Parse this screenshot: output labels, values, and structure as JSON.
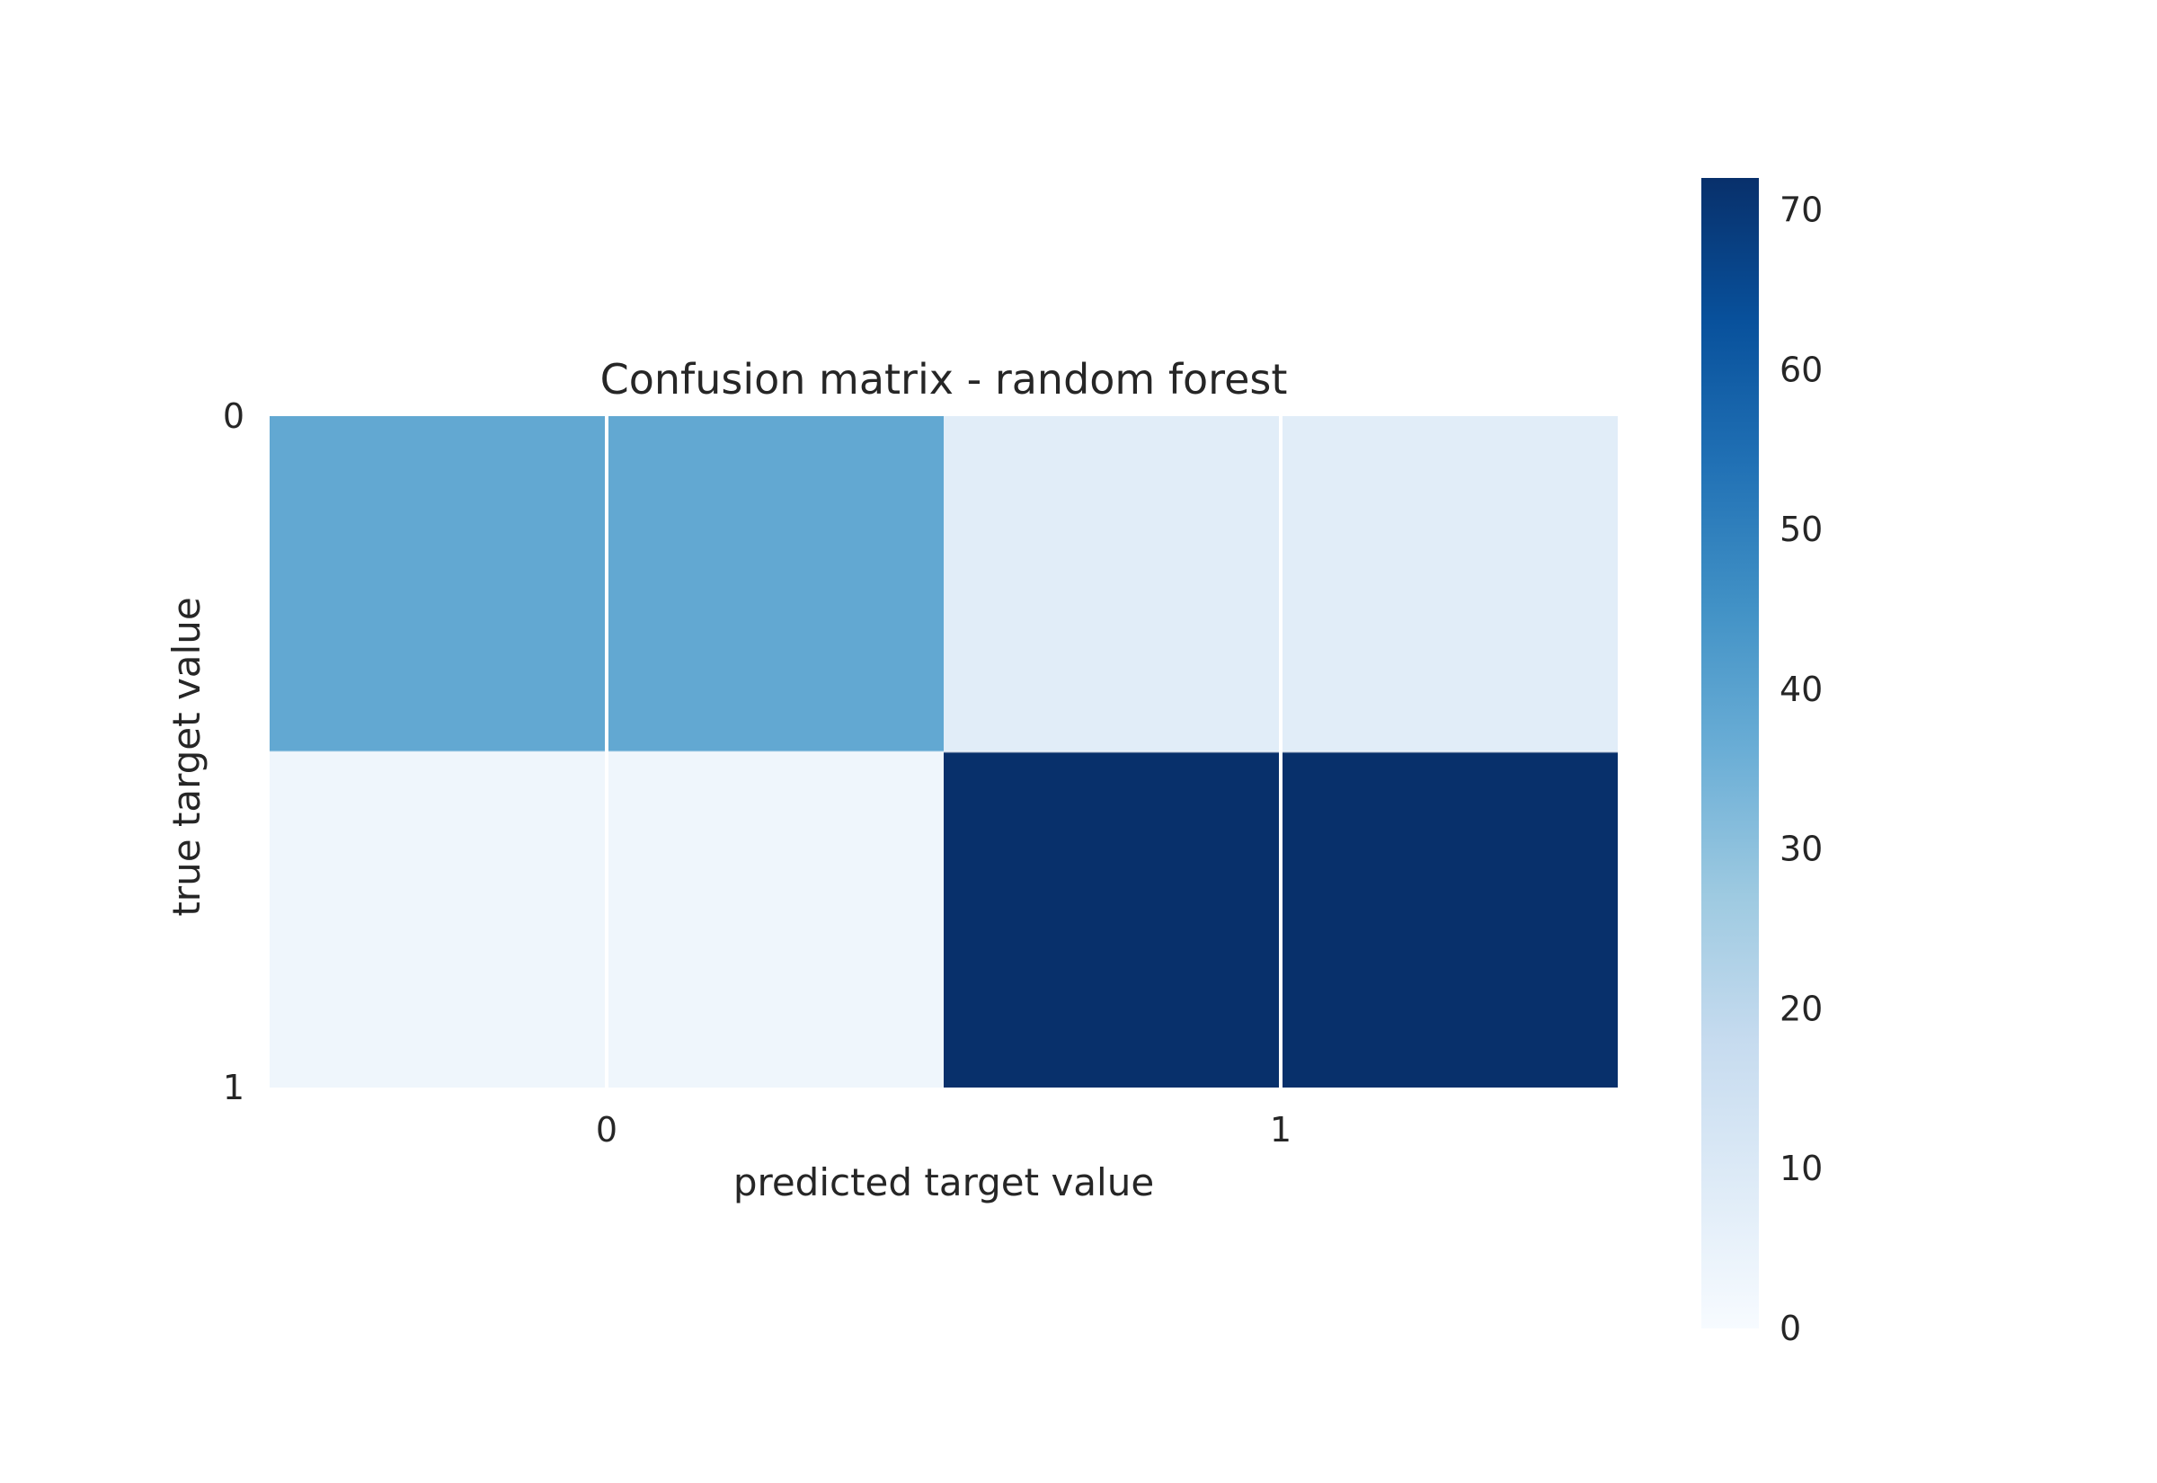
{
  "chart_data": {
    "type": "heatmap",
    "title": "Confusion matrix - random forest",
    "xlabel": "predicted target value",
    "ylabel": "true target value",
    "x_categories": [
      "0",
      "1"
    ],
    "y_categories": [
      "0",
      "1"
    ],
    "values": [
      [
        38,
        8
      ],
      [
        3,
        72
      ]
    ],
    "colormap": "Blues",
    "colorbar": {
      "min": 0,
      "max": 72,
      "ticks": [
        0,
        10,
        20,
        30,
        40,
        50,
        60,
        70
      ]
    },
    "grid": true,
    "grid_color": "#ffffff"
  }
}
